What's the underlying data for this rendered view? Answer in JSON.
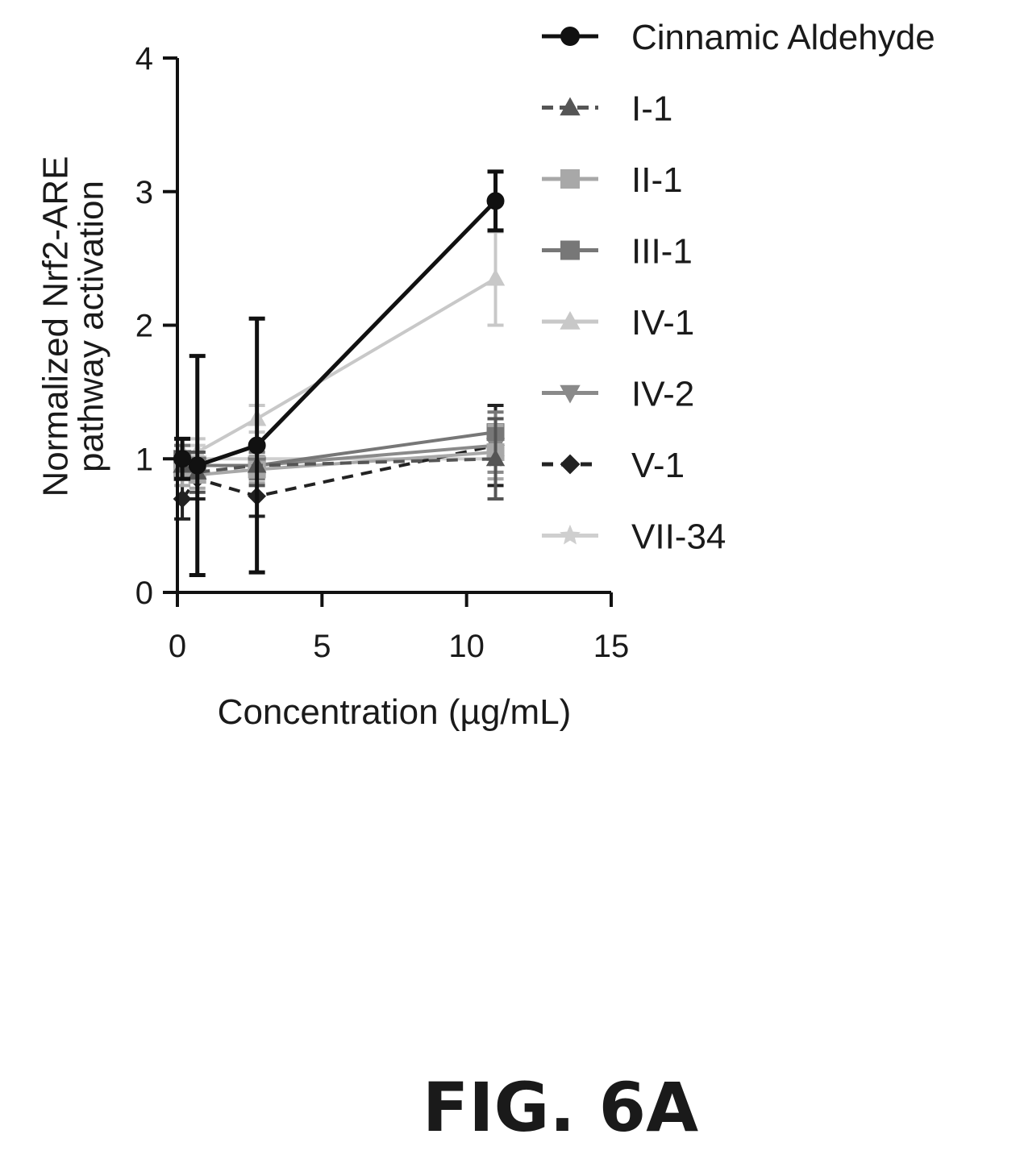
{
  "figure_label": "FIG. 6A",
  "chart_data": {
    "type": "line",
    "title": "",
    "xlabel": "Concentration (µg/mL)",
    "ylabel_lines": [
      "Normalized Nrf2-ARE",
      "pathway activation"
    ],
    "xlim": [
      0,
      15
    ],
    "ylim": [
      0,
      4
    ],
    "xticks": [
      0,
      5,
      10,
      15
    ],
    "yticks": [
      0,
      1,
      2,
      3,
      4
    ],
    "grid": false,
    "legend_position": "right",
    "x": [
      0.17,
      0.69,
      2.75,
      11
    ],
    "series": [
      {
        "name": "Cinnamic Aldehyde",
        "values": [
          1.0,
          0.95,
          1.1,
          2.93
        ],
        "err": [
          0.15,
          0.82,
          0.95,
          0.22
        ],
        "color": "#111111",
        "dash": "",
        "marker": "circle"
      },
      {
        "name": "I-1",
        "values": [
          0.95,
          0.9,
          0.95,
          1.0
        ],
        "err": [
          0.1,
          0.15,
          0.15,
          0.3
        ],
        "color": "#555555",
        "dash": "14,8",
        "marker": "triangle"
      },
      {
        "name": "II-1",
        "values": [
          0.9,
          0.88,
          0.92,
          1.05
        ],
        "err": [
          0.1,
          0.1,
          0.1,
          0.2
        ],
        "color": "#a8a8a8",
        "dash": "",
        "marker": "square"
      },
      {
        "name": "III-1",
        "values": [
          1.0,
          0.95,
          0.95,
          1.2
        ],
        "err": [
          0.1,
          0.1,
          0.1,
          0.15
        ],
        "color": "#777777",
        "dash": "",
        "marker": "square"
      },
      {
        "name": "IV-1",
        "values": [
          1.05,
          1.05,
          1.3,
          2.35
        ],
        "err": [
          0.1,
          0.1,
          0.1,
          0.35
        ],
        "color": "#c8c8c8",
        "dash": "",
        "marker": "triangle"
      },
      {
        "name": "IV-2",
        "values": [
          0.95,
          0.95,
          0.95,
          1.1
        ],
        "err": [
          0.1,
          0.1,
          0.1,
          0.2
        ],
        "color": "#8a8a8a",
        "dash": "",
        "marker": "triangle-down"
      },
      {
        "name": "V-1",
        "values": [
          0.7,
          0.85,
          0.72,
          1.1
        ],
        "err": [
          0.15,
          0.15,
          0.15,
          0.3
        ],
        "color": "#222222",
        "dash": "14,10",
        "marker": "diamond"
      },
      {
        "name": "VII-34",
        "values": [
          1.0,
          1.0,
          1.0,
          1.0
        ],
        "err": [
          0.1,
          0.1,
          0.1,
          0.1
        ],
        "color": "#cfcfcf",
        "dash": "",
        "marker": "star"
      }
    ]
  }
}
